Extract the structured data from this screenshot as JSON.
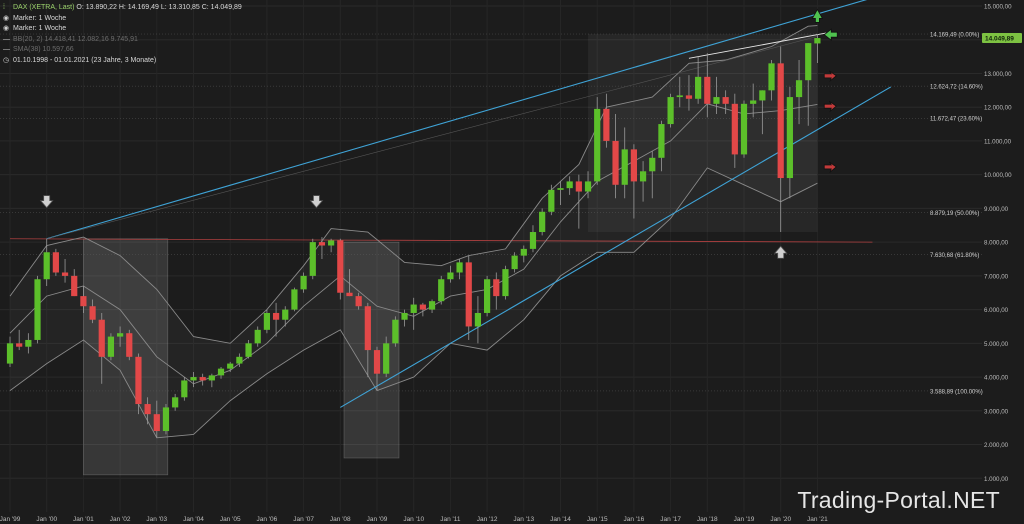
{
  "legend": {
    "title": "DAX (XETRA, Last)",
    "ohlc": "O: 13.890,22   H: 14.169,49   L: 13.310,85   C: 14.049,89",
    "marker1": "Marker: 1 Woche",
    "marker2": "Marker: 1 Woche",
    "bb": "BB(20, 2)   14.418,41   12.082,16   9.745,91",
    "sma": "SMA(38)   10.597,66",
    "period": "01.10.1998 - 01.01.2021   (23 Jahre, 3 Monate)"
  },
  "watermark": "Trading-Portal.NET",
  "colors": {
    "background": "#1c1c1c",
    "up": "#5cbf2a",
    "down": "#e24848",
    "channel": "#3fa3d6",
    "band": "#8a8a8a",
    "current_price_badge": "#7dc242",
    "arrow_green": "#4fc24f",
    "arrow_red": "#c23a3a"
  },
  "chart_data": {
    "type": "candlestick",
    "instrument": "DAX (XETRA)",
    "timeframe": "monthly",
    "ylim": [
      0,
      15000
    ],
    "y_ticks": [
      1000,
      2000,
      3000,
      4000,
      5000,
      6000,
      7000,
      8000,
      9000,
      10000,
      11000,
      12000,
      13000,
      14000,
      15000
    ],
    "y_tick_labels": [
      "1.000,00",
      "2.000,00",
      "3.000,00",
      "4.000,00",
      "5.000,00",
      "6.000,00",
      "7.000,00",
      "8.000,00",
      "9.000,00",
      "10.000,00",
      "11.000,00",
      "12.000,00",
      "13.000,00",
      "14.000,00",
      "15.000,00"
    ],
    "x_range": [
      1999.0,
      2021.25
    ],
    "x_ticks": [
      1999,
      2000,
      2001,
      2002,
      2003,
      2004,
      2005,
      2006,
      2007,
      2008,
      2009,
      2010,
      2011,
      2012,
      2013,
      2014,
      2015,
      2016,
      2017,
      2018,
      2019,
      2020,
      2021
    ],
    "x_tick_labels": [
      "Jan '99",
      "Jan '00",
      "Jan '01",
      "Jan '02",
      "Jan '03",
      "Jan '04",
      "Jan '05",
      "Jan '06",
      "Jan '07",
      "Jan '08",
      "Jan '09",
      "Jan '10",
      "Jan '11",
      "Jan '12",
      "Jan '13",
      "Jan '14",
      "Jan '15",
      "Jan '16",
      "Jan '17",
      "Jan '18",
      "Jan '19",
      "Jan '20",
      "Jan '21"
    ],
    "candles": [
      {
        "t": 1999.0,
        "o": 4400,
        "h": 5200,
        "l": 4300,
        "c": 5000
      },
      {
        "t": 1999.25,
        "o": 5000,
        "h": 5400,
        "l": 4800,
        "c": 4900
      },
      {
        "t": 1999.5,
        "o": 4900,
        "h": 5300,
        "l": 4700,
        "c": 5100
      },
      {
        "t": 1999.75,
        "o": 5100,
        "h": 7000,
        "l": 5000,
        "c": 6900
      },
      {
        "t": 2000.0,
        "o": 6900,
        "h": 8100,
        "l": 6700,
        "c": 7700
      },
      {
        "t": 2000.25,
        "o": 7700,
        "h": 7800,
        "l": 7000,
        "c": 7100
      },
      {
        "t": 2000.5,
        "o": 7100,
        "h": 7500,
        "l": 6800,
        "c": 7000
      },
      {
        "t": 2000.75,
        "o": 7000,
        "h": 7200,
        "l": 6400,
        "c": 6400
      },
      {
        "t": 2001.0,
        "o": 6400,
        "h": 6700,
        "l": 5900,
        "c": 6100
      },
      {
        "t": 2001.25,
        "o": 6100,
        "h": 6300,
        "l": 5600,
        "c": 5700
      },
      {
        "t": 2001.5,
        "o": 5700,
        "h": 5900,
        "l": 3800,
        "c": 4600
      },
      {
        "t": 2001.75,
        "o": 4600,
        "h": 5300,
        "l": 4500,
        "c": 5200
      },
      {
        "t": 2002.0,
        "o": 5200,
        "h": 5500,
        "l": 4900,
        "c": 5300
      },
      {
        "t": 2002.25,
        "o": 5300,
        "h": 5400,
        "l": 4500,
        "c": 4600
      },
      {
        "t": 2002.5,
        "o": 4600,
        "h": 4700,
        "l": 2900,
        "c": 3200
      },
      {
        "t": 2002.75,
        "o": 3200,
        "h": 3400,
        "l": 2600,
        "c": 2900
      },
      {
        "t": 2003.0,
        "o": 2900,
        "h": 3300,
        "l": 2200,
        "c": 2400
      },
      {
        "t": 2003.25,
        "o": 2400,
        "h": 3200,
        "l": 2300,
        "c": 3100
      },
      {
        "t": 2003.5,
        "o": 3100,
        "h": 3500,
        "l": 3000,
        "c": 3400
      },
      {
        "t": 2003.75,
        "o": 3400,
        "h": 4000,
        "l": 3300,
        "c": 3900
      },
      {
        "t": 2004.0,
        "o": 3900,
        "h": 4150,
        "l": 3700,
        "c": 4000
      },
      {
        "t": 2004.25,
        "o": 4000,
        "h": 4100,
        "l": 3750,
        "c": 3900
      },
      {
        "t": 2004.5,
        "o": 3900,
        "h": 4100,
        "l": 3700,
        "c": 4050
      },
      {
        "t": 2004.75,
        "o": 4050,
        "h": 4300,
        "l": 3950,
        "c": 4250
      },
      {
        "t": 2005.0,
        "o": 4250,
        "h": 4450,
        "l": 4150,
        "c": 4400
      },
      {
        "t": 2005.25,
        "o": 4400,
        "h": 4700,
        "l": 4300,
        "c": 4600
      },
      {
        "t": 2005.5,
        "o": 4600,
        "h": 5100,
        "l": 4550,
        "c": 5000
      },
      {
        "t": 2005.75,
        "o": 5000,
        "h": 5500,
        "l": 4900,
        "c": 5400
      },
      {
        "t": 2006.0,
        "o": 5400,
        "h": 6000,
        "l": 5300,
        "c": 5900
      },
      {
        "t": 2006.25,
        "o": 5900,
        "h": 6200,
        "l": 5200,
        "c": 5700
      },
      {
        "t": 2006.5,
        "o": 5700,
        "h": 6100,
        "l": 5500,
        "c": 6000
      },
      {
        "t": 2006.75,
        "o": 6000,
        "h": 6650,
        "l": 5950,
        "c": 6600
      },
      {
        "t": 2007.0,
        "o": 6600,
        "h": 7100,
        "l": 6500,
        "c": 7000
      },
      {
        "t": 2007.25,
        "o": 7000,
        "h": 8100,
        "l": 6900,
        "c": 8000
      },
      {
        "t": 2007.5,
        "o": 8000,
        "h": 8150,
        "l": 7500,
        "c": 7900
      },
      {
        "t": 2007.75,
        "o": 7900,
        "h": 8100,
        "l": 7700,
        "c": 8050
      },
      {
        "t": 2008.0,
        "o": 8050,
        "h": 8100,
        "l": 6300,
        "c": 6500
      },
      {
        "t": 2008.25,
        "o": 6500,
        "h": 7200,
        "l": 6400,
        "c": 6400
      },
      {
        "t": 2008.5,
        "o": 6400,
        "h": 6500,
        "l": 6000,
        "c": 6100
      },
      {
        "t": 2008.75,
        "o": 6100,
        "h": 6200,
        "l": 4000,
        "c": 4800
      },
      {
        "t": 2009.0,
        "o": 4800,
        "h": 4900,
        "l": 3600,
        "c": 4100
      },
      {
        "t": 2009.25,
        "o": 4100,
        "h": 5200,
        "l": 4000,
        "c": 5000
      },
      {
        "t": 2009.5,
        "o": 5000,
        "h": 5800,
        "l": 4900,
        "c": 5700
      },
      {
        "t": 2009.75,
        "o": 5700,
        "h": 6000,
        "l": 5500,
        "c": 5900
      },
      {
        "t": 2010.0,
        "o": 5900,
        "h": 6350,
        "l": 5400,
        "c": 6150
      },
      {
        "t": 2010.25,
        "o": 6150,
        "h": 6200,
        "l": 5800,
        "c": 6000
      },
      {
        "t": 2010.5,
        "o": 6000,
        "h": 6300,
        "l": 5900,
        "c": 6250
      },
      {
        "t": 2010.75,
        "o": 6250,
        "h": 7000,
        "l": 6150,
        "c": 6900
      },
      {
        "t": 2011.0,
        "o": 6900,
        "h": 7300,
        "l": 6800,
        "c": 7100
      },
      {
        "t": 2011.25,
        "o": 7100,
        "h": 7500,
        "l": 6900,
        "c": 7400
      },
      {
        "t": 2011.5,
        "o": 7400,
        "h": 7600,
        "l": 5100,
        "c": 5500
      },
      {
        "t": 2011.75,
        "o": 5500,
        "h": 6400,
        "l": 5000,
        "c": 5900
      },
      {
        "t": 2012.0,
        "o": 5900,
        "h": 7000,
        "l": 5800,
        "c": 6900
      },
      {
        "t": 2012.25,
        "o": 6900,
        "h": 7100,
        "l": 6000,
        "c": 6400
      },
      {
        "t": 2012.5,
        "o": 6400,
        "h": 7300,
        "l": 6300,
        "c": 7200
      },
      {
        "t": 2012.75,
        "o": 7200,
        "h": 7700,
        "l": 7100,
        "c": 7600
      },
      {
        "t": 2013.0,
        "o": 7600,
        "h": 7900,
        "l": 7400,
        "c": 7800
      },
      {
        "t": 2013.25,
        "o": 7800,
        "h": 8500,
        "l": 7700,
        "c": 8300
      },
      {
        "t": 2013.5,
        "o": 8300,
        "h": 9000,
        "l": 8200,
        "c": 8900
      },
      {
        "t": 2013.75,
        "o": 8900,
        "h": 9700,
        "l": 8800,
        "c": 9550
      },
      {
        "t": 2014.0,
        "o": 9550,
        "h": 9800,
        "l": 9100,
        "c": 9600
      },
      {
        "t": 2014.25,
        "o": 9600,
        "h": 9950,
        "l": 9400,
        "c": 9800
      },
      {
        "t": 2014.5,
        "o": 9800,
        "h": 10000,
        "l": 8400,
        "c": 9500
      },
      {
        "t": 2014.75,
        "o": 9500,
        "h": 10100,
        "l": 9300,
        "c": 9800
      },
      {
        "t": 2015.0,
        "o": 9800,
        "h": 12300,
        "l": 9700,
        "c": 11950
      },
      {
        "t": 2015.25,
        "o": 11950,
        "h": 12400,
        "l": 10800,
        "c": 11000
      },
      {
        "t": 2015.5,
        "o": 11000,
        "h": 11800,
        "l": 9300,
        "c": 9700
      },
      {
        "t": 2015.75,
        "o": 9700,
        "h": 11400,
        "l": 9300,
        "c": 10750
      },
      {
        "t": 2016.0,
        "o": 10750,
        "h": 10900,
        "l": 8700,
        "c": 9800
      },
      {
        "t": 2016.25,
        "o": 9800,
        "h": 10400,
        "l": 9200,
        "c": 10100
      },
      {
        "t": 2016.5,
        "o": 10100,
        "h": 10700,
        "l": 9300,
        "c": 10500
      },
      {
        "t": 2016.75,
        "o": 10500,
        "h": 11600,
        "l": 10100,
        "c": 11500
      },
      {
        "t": 2017.0,
        "o": 11500,
        "h": 12400,
        "l": 11400,
        "c": 12300
      },
      {
        "t": 2017.25,
        "o": 12300,
        "h": 12900,
        "l": 12000,
        "c": 12350
      },
      {
        "t": 2017.5,
        "o": 12350,
        "h": 12950,
        "l": 11900,
        "c": 12250
      },
      {
        "t": 2017.75,
        "o": 12250,
        "h": 13500,
        "l": 12100,
        "c": 12900
      },
      {
        "t": 2018.0,
        "o": 12900,
        "h": 13600,
        "l": 11700,
        "c": 12100
      },
      {
        "t": 2018.25,
        "o": 12100,
        "h": 12900,
        "l": 11800,
        "c": 12300
      },
      {
        "t": 2018.5,
        "o": 12300,
        "h": 12500,
        "l": 11800,
        "c": 12100
      },
      {
        "t": 2018.75,
        "o": 12100,
        "h": 12400,
        "l": 10200,
        "c": 10600
      },
      {
        "t": 2019.0,
        "o": 10600,
        "h": 12200,
        "l": 10500,
        "c": 12100
      },
      {
        "t": 2019.25,
        "o": 12100,
        "h": 12700,
        "l": 11700,
        "c": 12200
      },
      {
        "t": 2019.5,
        "o": 12200,
        "h": 12500,
        "l": 11200,
        "c": 12500
      },
      {
        "t": 2019.75,
        "o": 12500,
        "h": 13400,
        "l": 12200,
        "c": 13300
      },
      {
        "t": 2020.0,
        "o": 13300,
        "h": 13800,
        "l": 8300,
        "c": 9900
      },
      {
        "t": 2020.25,
        "o": 9900,
        "h": 12600,
        "l": 9300,
        "c": 12300
      },
      {
        "t": 2020.5,
        "o": 12300,
        "h": 13400,
        "l": 11500,
        "c": 12800
      },
      {
        "t": 2020.75,
        "o": 12800,
        "h": 13900,
        "l": 11450,
        "c": 13900
      },
      {
        "t": 2021.0,
        "o": 13890.22,
        "h": 14169.49,
        "l": 13310.85,
        "c": 14049.89
      }
    ],
    "bollinger_bands": {
      "name": "BB(20, 2)",
      "upper": [
        [
          1999.0,
          6400
        ],
        [
          2000.0,
          7900
        ],
        [
          2001.0,
          8150
        ],
        [
          2002.0,
          7600
        ],
        [
          2003.0,
          6600
        ],
        [
          2004.0,
          5200
        ],
        [
          2005.0,
          5000
        ],
        [
          2006.0,
          6000
        ],
        [
          2007.0,
          7300
        ],
        [
          2007.75,
          8400
        ],
        [
          2008.75,
          8300
        ],
        [
          2009.75,
          7400
        ],
        [
          2010.75,
          7300
        ],
        [
          2011.5,
          7600
        ],
        [
          2012.5,
          7800
        ],
        [
          2013.5,
          9300
        ],
        [
          2014.5,
          10300
        ],
        [
          2015.25,
          12000
        ],
        [
          2016.5,
          12300
        ],
        [
          2017.5,
          13300
        ],
        [
          2018.5,
          13400
        ],
        [
          2019.75,
          13800
        ],
        [
          2020.75,
          14400
        ],
        [
          2021.0,
          14418.41
        ]
      ],
      "middle": [
        [
          1999.0,
          5300
        ],
        [
          2000.0,
          6400
        ],
        [
          2001.0,
          6700
        ],
        [
          2002.0,
          6000
        ],
        [
          2003.0,
          4600
        ],
        [
          2004.0,
          3800
        ],
        [
          2005.0,
          4200
        ],
        [
          2006.0,
          5000
        ],
        [
          2007.0,
          6100
        ],
        [
          2008.0,
          7000
        ],
        [
          2009.0,
          6100
        ],
        [
          2010.0,
          5800
        ],
        [
          2011.0,
          6400
        ],
        [
          2012.0,
          6600
        ],
        [
          2013.0,
          7200
        ],
        [
          2014.0,
          8600
        ],
        [
          2015.0,
          9800
        ],
        [
          2016.0,
          10400
        ],
        [
          2017.0,
          11000
        ],
        [
          2018.0,
          12100
        ],
        [
          2019.0,
          11800
        ],
        [
          2020.0,
          11900
        ],
        [
          2021.0,
          12082.16
        ]
      ],
      "lower": [
        [
          1999.0,
          3600
        ],
        [
          2000.0,
          4400
        ],
        [
          2001.0,
          5100
        ],
        [
          2002.0,
          4200
        ],
        [
          2003.0,
          2200
        ],
        [
          2004.0,
          2300
        ],
        [
          2005.0,
          3300
        ],
        [
          2006.0,
          4100
        ],
        [
          2007.0,
          4800
        ],
        [
          2008.0,
          5400
        ],
        [
          2009.0,
          3600
        ],
        [
          2010.0,
          4000
        ],
        [
          2011.0,
          5000
        ],
        [
          2012.0,
          4800
        ],
        [
          2013.0,
          5700
        ],
        [
          2014.0,
          7000
        ],
        [
          2015.0,
          7700
        ],
        [
          2016.0,
          7700
        ],
        [
          2017.0,
          8700
        ],
        [
          2018.0,
          10200
        ],
        [
          2019.0,
          9700
        ],
        [
          2020.0,
          9200
        ],
        [
          2021.0,
          9745.91
        ]
      ]
    },
    "sma": {
      "name": "SMA(38)",
      "last": 10597.66
    },
    "channel_lines": [
      {
        "from": [
          2000.0,
          8100
        ],
        "to": [
          2023.0,
          15400
        ]
      },
      {
        "from": [
          2008.0,
          3100
        ],
        "to": [
          2023.0,
          12600
        ]
      }
    ],
    "trend_lines": [
      {
        "from": [
          2017.5,
          13450
        ],
        "to": [
          2021.25,
          14200
        ]
      },
      {
        "from": [
          2000.0,
          8100
        ],
        "to": [
          2021.0,
          14100
        ]
      }
    ],
    "support_line": {
      "from": [
        1999.0,
        8100
      ],
      "to": [
        2022.5,
        8000
      ]
    },
    "shaded_zones": [
      {
        "x0": 2001.0,
        "x1": 2003.3,
        "y0": 1100,
        "y1": 8100
      },
      {
        "x0": 2008.1,
        "x1": 2009.6,
        "y0": 1600,
        "y1": 8000
      }
    ],
    "fib_box": {
      "x0": 2014.75,
      "x1": 2021.0,
      "y_top": 14169.49,
      "y_bottom": 8300
    },
    "fibonacci_levels": [
      {
        "price": 14169.49,
        "label": "14.169,49 (0.00%)"
      },
      {
        "price": 12624.72,
        "label": "12.624,72 (14.60%)"
      },
      {
        "price": 11672.47,
        "label": "11.672,47 (23.60%)"
      },
      {
        "price": 8879.19,
        "label": "8.879,19 (50.00%)"
      },
      {
        "price": 7630.68,
        "label": "7.630,68 (61.80%)"
      },
      {
        "price": 3588.89,
        "label": "3.588,89 (100.00%)"
      }
    ],
    "current_price": {
      "price": 14049.89,
      "label": "14.049,89"
    },
    "markers": [
      {
        "type": "arrow-down",
        "color": "gray",
        "t": 2000.0,
        "price": 9200
      },
      {
        "type": "arrow-down",
        "color": "gray",
        "t": 2007.35,
        "price": 9200
      },
      {
        "type": "arrow-up",
        "color": "gray",
        "t": 2020.0,
        "price": 7700
      },
      {
        "type": "arrow-up-right",
        "color": "green",
        "t": 2021.0,
        "price": 14750
      },
      {
        "type": "arrow-left",
        "color": "green",
        "t": 2021.35,
        "price": 14150
      },
      {
        "type": "arrow-right-up",
        "color": "red",
        "t": 2021.35,
        "price": 12900
      },
      {
        "type": "arrow-right-up",
        "color": "red",
        "t": 2021.35,
        "price": 12000
      },
      {
        "type": "arrow-right-up",
        "color": "red",
        "t": 2021.35,
        "price": 10200
      }
    ]
  }
}
